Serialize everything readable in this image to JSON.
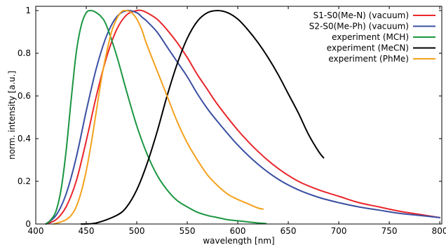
{
  "chart_data": {
    "type": "line",
    "title": "",
    "xlabel": "wavelength [nm]",
    "ylabel": "norm. intensity [a.u.]",
    "xlim": [
      400,
      802
    ],
    "ylim": [
      0,
      1.02
    ],
    "xticks": [
      400,
      450,
      500,
      550,
      600,
      650,
      700,
      750,
      800
    ],
    "yticks": [
      0,
      0.2,
      0.4,
      0.6,
      0.8,
      1
    ],
    "ytick_labels": [
      "0",
      "0.2",
      "0.4",
      "0.6",
      "0.8",
      "1"
    ],
    "legend_position": "top-right",
    "grid": false,
    "series": [
      {
        "name": "S1-S0(Me-N) (vacuum)",
        "color": "#e8262b",
        "x": [
          410,
          420,
          430,
          440,
          450,
          460,
          470,
          480,
          490,
          500,
          505,
          510,
          520,
          530,
          540,
          550,
          560,
          570,
          580,
          600,
          620,
          640,
          660,
          680,
          700,
          720,
          740,
          760,
          780,
          800
        ],
        "y": [
          0.0,
          0.02,
          0.08,
          0.2,
          0.39,
          0.6,
          0.78,
          0.91,
          0.98,
          1.0,
          1.0,
          0.99,
          0.96,
          0.91,
          0.85,
          0.78,
          0.7,
          0.63,
          0.56,
          0.44,
          0.34,
          0.26,
          0.2,
          0.16,
          0.13,
          0.1,
          0.08,
          0.06,
          0.045,
          0.03
        ]
      },
      {
        "name": "S2-S0(Me-Ph) (vacuum)",
        "color": "#3a4fa2",
        "x": [
          410,
          420,
          430,
          440,
          450,
          460,
          470,
          480,
          490,
          500,
          505,
          510,
          520,
          530,
          540,
          550,
          560,
          570,
          580,
          600,
          620,
          640,
          660,
          680,
          700,
          720,
          740,
          760,
          780,
          800
        ],
        "y": [
          0.0,
          0.04,
          0.14,
          0.31,
          0.53,
          0.73,
          0.88,
          0.97,
          1.0,
          0.99,
          0.97,
          0.95,
          0.9,
          0.83,
          0.76,
          0.69,
          0.61,
          0.54,
          0.48,
          0.37,
          0.28,
          0.21,
          0.16,
          0.125,
          0.1,
          0.08,
          0.065,
          0.05,
          0.04,
          0.03
        ]
      },
      {
        "name": "experiment (MCH)",
        "color": "#1a9641",
        "x": [
          410,
          415,
          420,
          425,
          430,
          435,
          440,
          445,
          450,
          455,
          460,
          465,
          470,
          480,
          490,
          500,
          510,
          520,
          530,
          540,
          550,
          560,
          570,
          580,
          590,
          600,
          610,
          620,
          628
        ],
        "y": [
          0.0,
          0.02,
          0.06,
          0.16,
          0.34,
          0.58,
          0.8,
          0.93,
          0.99,
          1.0,
          0.99,
          0.97,
          0.93,
          0.79,
          0.62,
          0.46,
          0.33,
          0.23,
          0.16,
          0.11,
          0.08,
          0.055,
          0.04,
          0.03,
          0.02,
          0.015,
          0.01,
          0.005,
          0.002
        ]
      },
      {
        "name": "experiment (MeCN)",
        "color": "#000000",
        "x": [
          445,
          460,
          480,
          490,
          500,
          510,
          520,
          530,
          540,
          550,
          560,
          570,
          580,
          590,
          600,
          610,
          620,
          630,
          640,
          650,
          660,
          670,
          680,
          685
        ],
        "y": [
          0.0,
          0.005,
          0.04,
          0.08,
          0.16,
          0.28,
          0.43,
          0.6,
          0.75,
          0.87,
          0.95,
          0.99,
          1.0,
          0.99,
          0.96,
          0.91,
          0.85,
          0.78,
          0.7,
          0.61,
          0.52,
          0.42,
          0.34,
          0.31
        ]
      },
      {
        "name": "experiment (PhMe)",
        "color": "#f4a11d",
        "x": [
          418,
          425,
          430,
          435,
          440,
          445,
          450,
          455,
          460,
          465,
          470,
          475,
          480,
          485,
          490,
          495,
          500,
          505,
          510,
          520,
          530,
          540,
          550,
          560,
          570,
          580,
          590,
          600,
          610,
          620,
          625
        ],
        "y": [
          0.0,
          0.01,
          0.02,
          0.04,
          0.08,
          0.15,
          0.25,
          0.38,
          0.53,
          0.68,
          0.8,
          0.9,
          0.96,
          0.995,
          1.0,
          0.99,
          0.96,
          0.91,
          0.84,
          0.72,
          0.6,
          0.48,
          0.38,
          0.3,
          0.23,
          0.18,
          0.14,
          0.115,
          0.095,
          0.075,
          0.07
        ]
      }
    ]
  }
}
